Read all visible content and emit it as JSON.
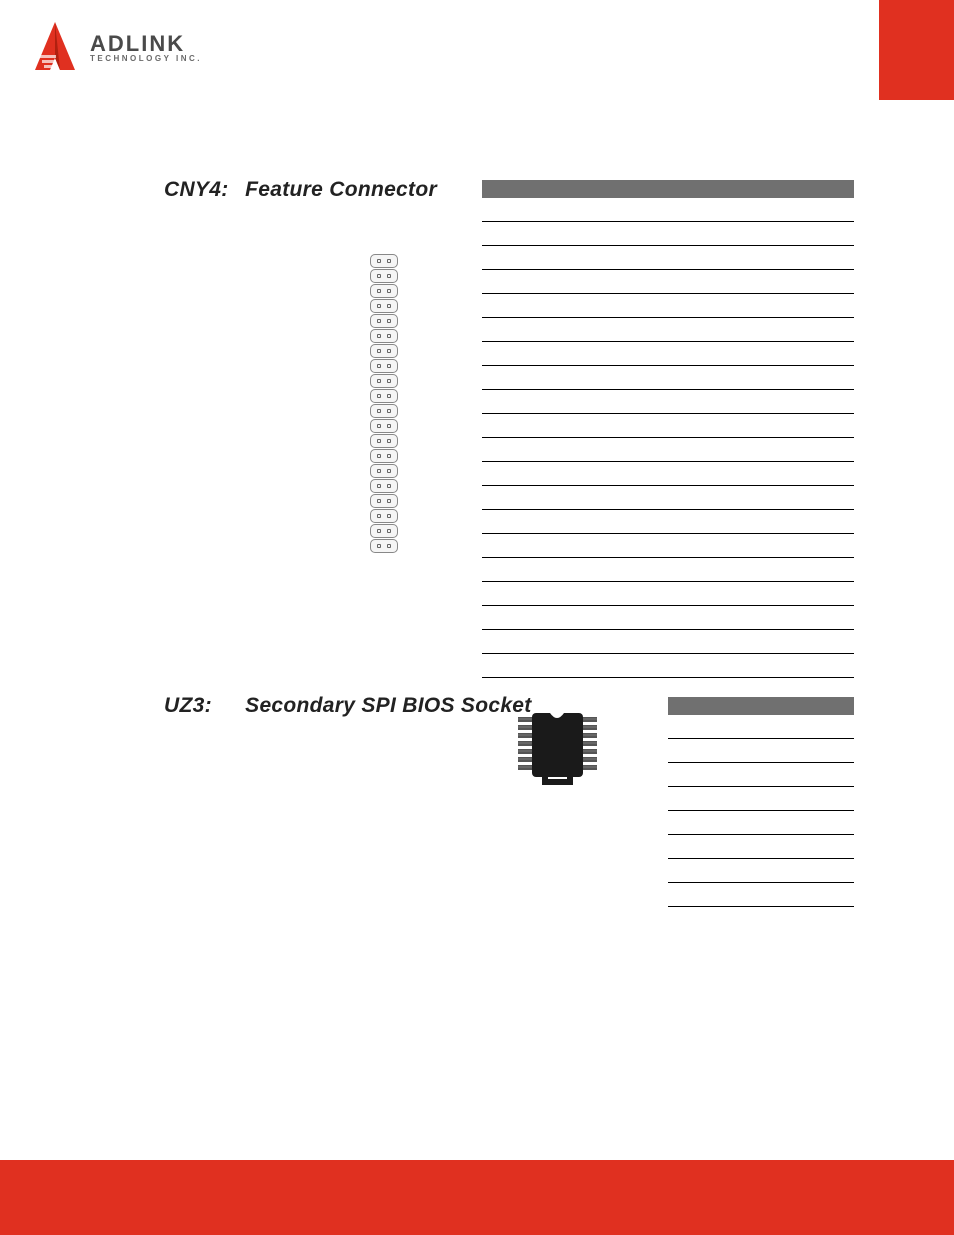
{
  "logo": {
    "main": "ADLINK",
    "sub": "TECHNOLOGY INC."
  },
  "colors": {
    "red": "#e03020",
    "header_bar": "#707070",
    "text": "#222222"
  },
  "section1": {
    "label": "CNY4:",
    "title": "Feature Connector",
    "pin_rows": 20,
    "table_rows": 20
  },
  "section2": {
    "label": "UZ3:",
    "title": "Secondary SPI BIOS Socket",
    "table_rows": 8
  }
}
